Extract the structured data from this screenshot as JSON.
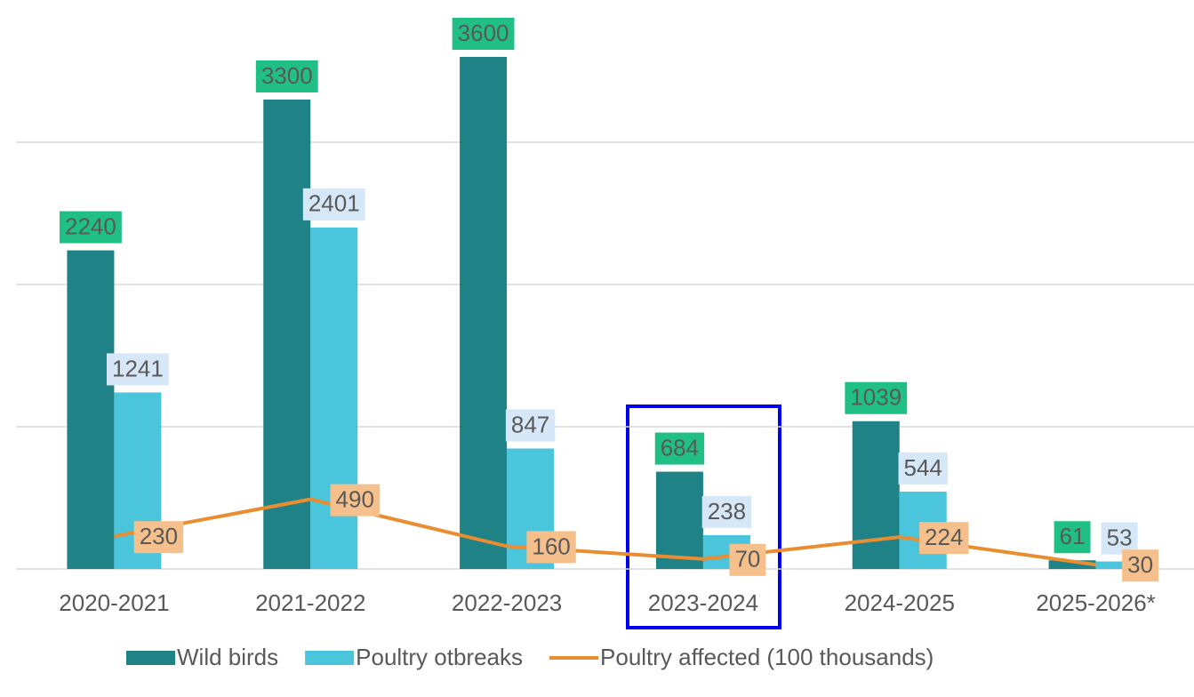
{
  "chart_data": {
    "type": "bar_line",
    "categories": [
      "2020-2021",
      "2021-2022",
      "2022-2023",
      "2023-2024",
      "2024-2025",
      "2025-2026*"
    ],
    "series": [
      {
        "name": "Wild birds",
        "type": "bar",
        "color": "#1e8287",
        "label_color": "#20bf85",
        "values": [
          2240,
          3300,
          3600,
          684,
          1039,
          61
        ]
      },
      {
        "name": "Poultry otbreaks",
        "type": "bar",
        "color": "#4bc5dc",
        "label_color": "#d6e8f7",
        "values": [
          1241,
          2401,
          847,
          238,
          544,
          53
        ]
      },
      {
        "name": "Poultry affected (100 thousands)",
        "type": "line",
        "color": "#ea8d30",
        "label_color": "#f6c08c",
        "values": [
          230,
          490,
          160,
          70,
          224,
          30
        ]
      }
    ],
    "ylim": [
      0,
      4000
    ],
    "yticks": [
      0,
      1000,
      2000,
      3000
    ],
    "grid": true
  }
}
